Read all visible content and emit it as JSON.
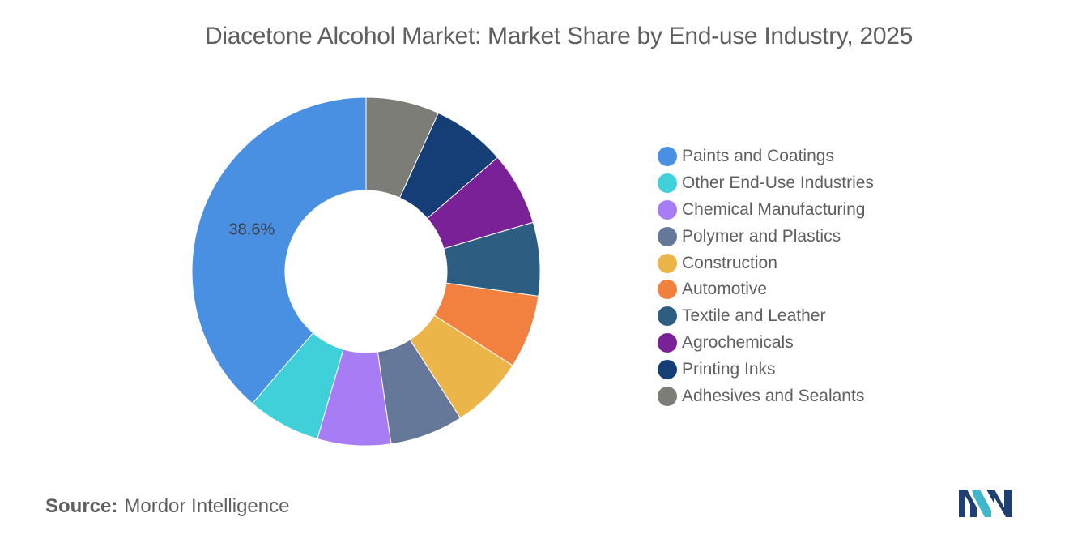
{
  "chart_data": {
    "type": "pie",
    "title": "Diacetone Alcohol Market: Market Share by End-use Industry, 2025",
    "categories": [
      "Paints and Coatings",
      "Other End-Use Industries",
      "Chemical Manufacturing",
      "Polymer and Plastics",
      "Construction",
      "Automotive",
      "Textile and Leather",
      "Agrochemicals",
      "Printing Inks",
      "Adhesives and Sealants"
    ],
    "values": [
      38.6,
      6.8,
      6.8,
      6.8,
      6.8,
      6.8,
      6.8,
      6.8,
      6.8,
      6.8
    ],
    "colors": [
      "#4a90e2",
      "#40d0da",
      "#a77cf5",
      "#66789a",
      "#ebb54a",
      "#f2813f",
      "#2d5d80",
      "#7b2197",
      "#143e75",
      "#7c7d76"
    ],
    "data_labels": [
      "38.6%",
      "",
      "",
      "",
      "",
      "",
      "",
      "",
      "",
      ""
    ],
    "legend_position": "right",
    "donut": true
  },
  "source": {
    "label": "Source:",
    "text": "Mordor Intelligence"
  },
  "logo": {
    "icon": "mordor-intelligence-logo-icon",
    "colors": [
      "#1f3f70",
      "#3fb6c9"
    ]
  }
}
